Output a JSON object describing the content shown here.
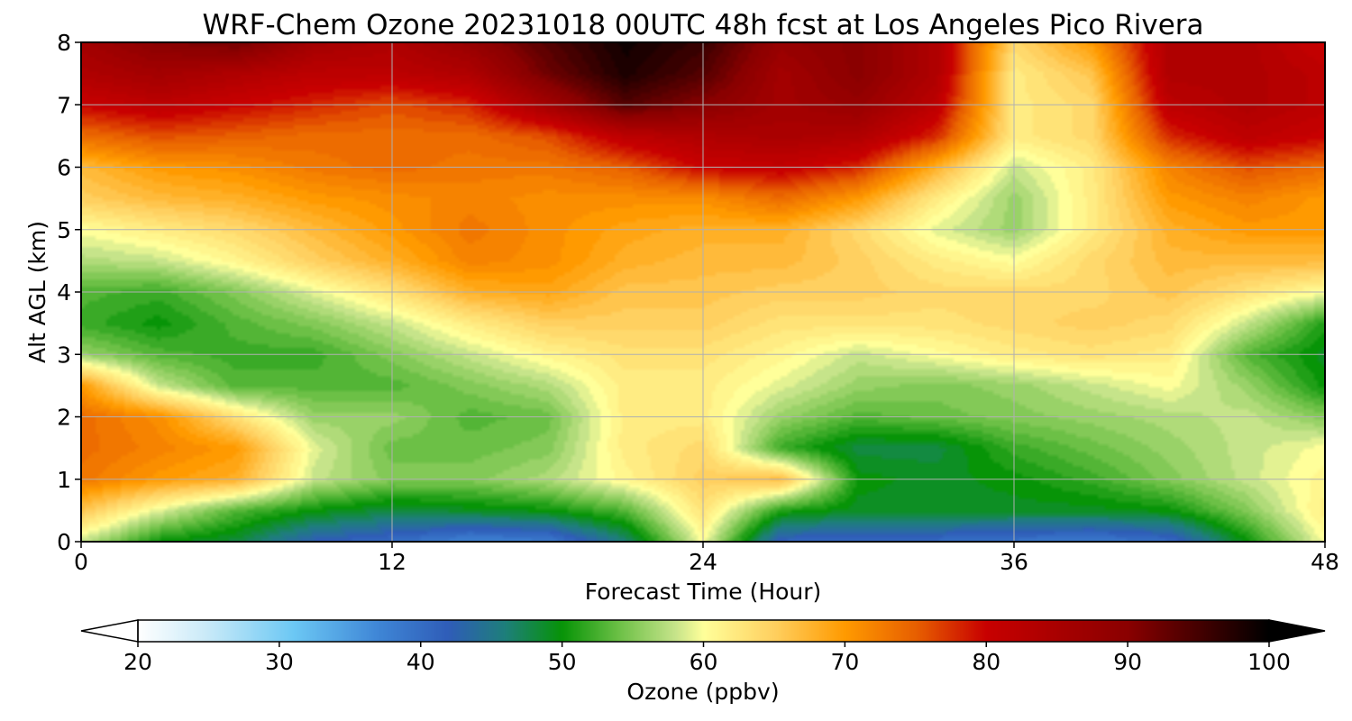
{
  "chart_data": {
    "type": "heatmap",
    "title": "WRF-Chem Ozone  20231018 00UTC 48h fcst at Los Angeles Pico Rivera",
    "xlabel": "Forecast Time (Hour)",
    "ylabel": "Alt AGL (km)",
    "xlim": [
      0,
      48
    ],
    "ylim": [
      0,
      8
    ],
    "x_ticks": [
      "0",
      "12",
      "24",
      "36",
      "48"
    ],
    "y_ticks": [
      "0",
      "1",
      "2",
      "3",
      "4",
      "5",
      "6",
      "7",
      "8"
    ],
    "grid": true,
    "colorbar": {
      "label": "Ozone  (ppbv)",
      "range": [
        20,
        100
      ],
      "ticks": [
        "20",
        "30",
        "40",
        "50",
        "60",
        "70",
        "80",
        "90",
        "100"
      ],
      "extend": "both",
      "stops": [
        {
          "v": 20,
          "c": "#ffffff"
        },
        {
          "v": 25,
          "c": "#c8eaf8"
        },
        {
          "v": 31,
          "c": "#6cc8f4"
        },
        {
          "v": 37,
          "c": "#3f86d6"
        },
        {
          "v": 42,
          "c": "#2f5db8"
        },
        {
          "v": 46,
          "c": "#1e7f7a"
        },
        {
          "v": 50,
          "c": "#079407"
        },
        {
          "v": 54,
          "c": "#6cc046"
        },
        {
          "v": 58,
          "c": "#c6e48a"
        },
        {
          "v": 60,
          "c": "#ffff9a"
        },
        {
          "v": 65,
          "c": "#ffd060"
        },
        {
          "v": 70,
          "c": "#ff9a00"
        },
        {
          "v": 75,
          "c": "#e86000"
        },
        {
          "v": 80,
          "c": "#c80000"
        },
        {
          "v": 90,
          "c": "#8a0000"
        },
        {
          "v": 100,
          "c": "#000000"
        }
      ]
    },
    "x": [
      0,
      3,
      6,
      9,
      12,
      15,
      18,
      21,
      24,
      27,
      30,
      33,
      36,
      39,
      42,
      45,
      48
    ],
    "y": [
      0,
      0.5,
      1,
      1.5,
      2,
      2.5,
      3,
      3.5,
      4,
      4.5,
      5,
      5.5,
      6,
      6.5,
      7,
      7.5,
      8
    ],
    "z": [
      [
        58,
        50,
        48,
        42,
        40,
        37,
        38,
        46,
        60,
        41,
        40,
        40,
        39,
        38,
        40,
        50,
        60
      ],
      [
        66,
        59,
        53,
        50,
        48,
        49,
        50,
        53,
        63,
        51,
        49,
        49,
        49,
        49,
        50,
        55,
        62
      ],
      [
        73,
        70,
        68,
        58,
        55,
        55,
        57,
        61,
        65,
        67,
        50,
        49,
        50,
        52,
        55,
        58,
        61
      ],
      [
        74,
        72,
        70,
        59,
        54,
        54,
        55,
        62,
        64,
        52,
        48,
        48,
        52,
        54,
        56,
        58,
        60
      ],
      [
        74,
        71,
        63,
        56,
        56,
        53,
        54,
        62,
        62,
        56,
        53,
        54,
        55,
        56,
        57,
        58,
        55
      ],
      [
        70,
        58,
        53,
        53,
        53,
        55,
        57,
        62,
        62,
        59,
        56,
        55,
        56,
        58,
        60,
        56,
        50
      ],
      [
        56,
        53,
        52,
        52,
        55,
        58,
        61,
        63,
        63,
        61,
        58,
        60,
        62,
        63,
        62,
        53,
        49
      ],
      [
        52,
        50,
        53,
        55,
        58,
        62,
        65,
        65,
        65,
        63,
        63,
        63,
        64,
        65,
        64,
        58,
        51
      ],
      [
        53,
        52,
        55,
        59,
        63,
        68,
        69,
        66,
        66,
        65,
        65,
        64,
        64,
        64,
        66,
        63,
        60
      ],
      [
        57,
        58,
        61,
        65,
        68,
        72,
        71,
        68,
        67,
        67,
        65,
        62,
        60,
        64,
        67,
        67,
        67
      ],
      [
        60,
        62,
        64,
        67,
        70,
        73,
        71,
        69,
        68,
        68,
        64,
        59,
        56,
        62,
        68,
        70,
        70
      ],
      [
        65,
        67,
        68,
        70,
        71,
        72,
        71,
        71,
        71,
        74,
        70,
        62,
        56,
        62,
        70,
        72,
        70
      ],
      [
        67,
        70,
        71,
        73,
        74,
        73,
        73,
        75,
        80,
        81,
        78,
        68,
        58,
        62,
        72,
        76,
        74
      ],
      [
        74,
        76,
        75,
        74,
        74,
        74,
        76,
        82,
        84,
        85,
        84,
        78,
        62,
        64,
        78,
        82,
        80
      ],
      [
        80,
        82,
        80,
        78,
        76,
        78,
        86,
        94,
        90,
        86,
        88,
        82,
        62,
        64,
        82,
        84,
        82
      ],
      [
        84,
        86,
        84,
        82,
        82,
        84,
        92,
        98,
        94,
        86,
        90,
        84,
        62,
        66,
        84,
        84,
        82
      ],
      [
        86,
        90,
        92,
        86,
        84,
        88,
        94,
        99,
        96,
        88,
        90,
        84,
        64,
        70,
        84,
        84,
        80
      ]
    ]
  }
}
